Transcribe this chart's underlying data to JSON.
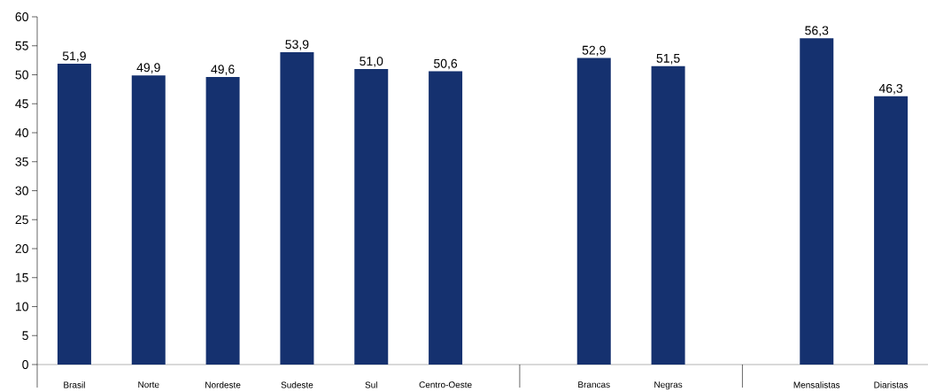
{
  "chart_data": {
    "type": "bar",
    "categories": [
      "Brasil",
      "Norte",
      "Nordeste",
      "Sudeste",
      "Sul",
      "Centro-Oeste",
      null,
      "Brancas",
      "Negras",
      null,
      "Mensalistas",
      "Diaristas"
    ],
    "values": [
      51.9,
      49.9,
      49.6,
      53.9,
      51.0,
      50.6,
      null,
      52.9,
      51.5,
      null,
      56.3,
      46.3
    ],
    "color": "#15316f",
    "ylim": [
      0,
      60
    ],
    "yticks": [
      0,
      5,
      10,
      15,
      20,
      25,
      30,
      35,
      40,
      45,
      50,
      55,
      60
    ],
    "value_labels": [
      "51,9",
      "49,9",
      "49,6",
      "53,9",
      "51,0",
      "50,6",
      null,
      "52,9",
      "51,5",
      null,
      "56,3",
      "46,3"
    ],
    "grid": false
  }
}
